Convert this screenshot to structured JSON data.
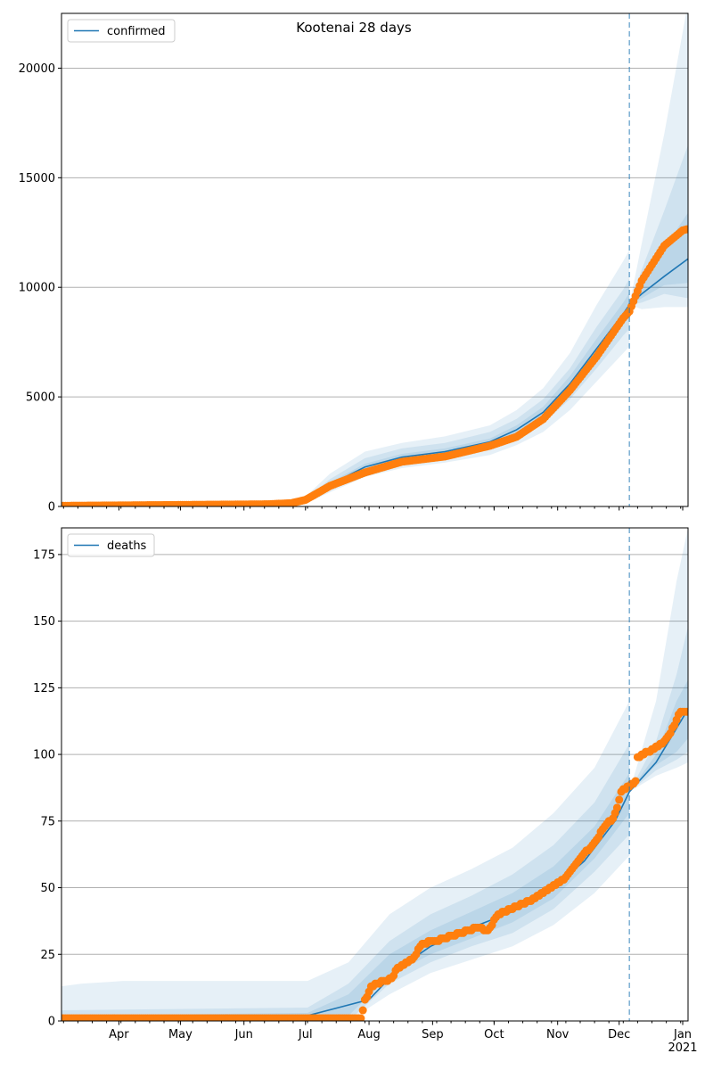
{
  "chart_data": [
    {
      "type": "line",
      "title": "Kootenai 28 days",
      "legend": {
        "label": "confirmed",
        "placement": "top-left"
      },
      "x_origin_date": "2020-03-04",
      "x_unit": "days since origin",
      "xlim": [
        0,
        305.6
      ],
      "ylim": [
        0,
        22500
      ],
      "yticks": [
        0,
        5000,
        10000,
        15000,
        20000
      ],
      "ytick_labels": [
        "0",
        "5000",
        "10000",
        "15000",
        "20000"
      ],
      "grid": "horizontal",
      "forecast_start_day": 277,
      "observed_keypoints": [
        [
          0,
          30
        ],
        [
          30,
          50
        ],
        [
          100,
          100
        ],
        [
          112,
          150
        ],
        [
          119,
          300
        ],
        [
          131,
          940
        ],
        [
          148,
          1550
        ],
        [
          166,
          2040
        ],
        [
          187,
          2280
        ],
        [
          209,
          2770
        ],
        [
          222,
          3180
        ],
        [
          235,
          3990
        ],
        [
          248,
          5300
        ],
        [
          261,
          6840
        ],
        [
          274,
          8600
        ],
        [
          277,
          8900
        ],
        [
          283,
          10300
        ],
        [
          294,
          11900
        ],
        [
          303,
          12600
        ],
        [
          305,
          12650
        ]
      ],
      "model": [
        [
          0,
          0
        ],
        [
          110,
          100
        ],
        [
          119,
          250
        ],
        [
          131,
          1000
        ],
        [
          148,
          1800
        ],
        [
          166,
          2250
        ],
        [
          187,
          2500
        ],
        [
          209,
          2950
        ],
        [
          222,
          3500
        ],
        [
          235,
          4300
        ],
        [
          248,
          5600
        ],
        [
          261,
          7200
        ],
        [
          274,
          8800
        ],
        [
          277,
          9200
        ],
        [
          283,
          9700
        ],
        [
          294,
          10500
        ],
        [
          305.6,
          11300
        ]
      ],
      "bands": [
        {
          "level": "outer",
          "hindcast": [
            [
              0,
              0,
              0
            ],
            [
              110,
              30,
              200
            ],
            [
              119,
              120,
              450
            ],
            [
              131,
              650,
              1500
            ],
            [
              148,
              1350,
              2500
            ],
            [
              166,
              1750,
              2900
            ],
            [
              187,
              2000,
              3200
            ],
            [
              209,
              2350,
              3700
            ],
            [
              222,
              2800,
              4400
            ],
            [
              235,
              3400,
              5400
            ],
            [
              248,
              4400,
              7000
            ],
            [
              261,
              5700,
              9200
            ],
            [
              274,
              7000,
              11200
            ],
            [
              277,
              7300,
              11700
            ]
          ],
          "forecast": [
            [
              277,
              9200,
              9200
            ],
            [
              283,
              9000,
              12000
            ],
            [
              294,
              9100,
              17000
            ],
            [
              305.6,
              9100,
              23000
            ]
          ]
        },
        {
          "level": "middle",
          "hindcast": [
            [
              0,
              0,
              0
            ],
            [
              110,
              50,
              150
            ],
            [
              119,
              160,
              350
            ],
            [
              131,
              780,
              1250
            ],
            [
              148,
              1500,
              2200
            ],
            [
              166,
              1950,
              2650
            ],
            [
              187,
              2200,
              2900
            ],
            [
              209,
              2600,
              3400
            ],
            [
              222,
              3100,
              4000
            ],
            [
              235,
              3800,
              4900
            ],
            [
              248,
              4900,
              6300
            ],
            [
              261,
              6300,
              8200
            ],
            [
              274,
              7800,
              9900
            ],
            [
              277,
              8100,
              10400
            ]
          ],
          "forecast": [
            [
              277,
              9200,
              9200
            ],
            [
              283,
              9300,
              10800
            ],
            [
              294,
              9700,
              13500
            ],
            [
              305.6,
              9500,
              16500
            ]
          ]
        },
        {
          "level": "inner",
          "hindcast": [
            [
              0,
              0,
              0
            ],
            [
              110,
              80,
              120
            ],
            [
              119,
              200,
              300
            ],
            [
              131,
              900,
              1100
            ],
            [
              148,
              1650,
              1950
            ],
            [
              166,
              2100,
              2400
            ],
            [
              187,
              2350,
              2650
            ],
            [
              209,
              2800,
              3100
            ],
            [
              222,
              3300,
              3700
            ],
            [
              235,
              4050,
              4550
            ],
            [
              248,
              5250,
              5950
            ],
            [
              261,
              6750,
              7650
            ],
            [
              274,
              8300,
              9300
            ],
            [
              277,
              8650,
              9750
            ]
          ],
          "forecast": [
            [
              277,
              9200,
              9200
            ],
            [
              283,
              9500,
              10100
            ],
            [
              294,
              10100,
              11800
            ],
            [
              305.6,
              10200,
              13400
            ]
          ]
        }
      ]
    },
    {
      "type": "line",
      "title": "",
      "legend": {
        "label": "deaths",
        "placement": "top-left"
      },
      "x_origin_date": "2020-03-04",
      "x_unit": "days since origin",
      "xlim": [
        0,
        305.6
      ],
      "ylim": [
        0,
        185
      ],
      "yticks": [
        0,
        25,
        50,
        75,
        100,
        125,
        150,
        175
      ],
      "ytick_labels": [
        "0",
        "25",
        "50",
        "75",
        "100",
        "125",
        "150",
        "175"
      ],
      "grid": "horizontal",
      "forecast_start_day": 277,
      "xticks": [
        {
          "day": 28,
          "label": "Apr"
        },
        {
          "day": 58,
          "label": "May"
        },
        {
          "day": 89,
          "label": "Jun"
        },
        {
          "day": 119,
          "label": "Jul"
        },
        {
          "day": 150,
          "label": "Aug"
        },
        {
          "day": 181,
          "label": "Sep"
        },
        {
          "day": 211,
          "label": "Oct"
        },
        {
          "day": 242,
          "label": "Nov"
        },
        {
          "day": 272,
          "label": "Dec"
        },
        {
          "day": 303,
          "label": "Jan",
          "sublabel": "2021"
        }
      ],
      "observed_keypoints": [
        [
          0,
          1
        ],
        [
          146,
          1
        ],
        [
          148,
          7.5
        ],
        [
          151,
          13
        ],
        [
          161,
          16
        ],
        [
          164,
          20
        ],
        [
          171,
          23
        ],
        [
          176,
          29
        ],
        [
          187,
          31
        ],
        [
          202,
          35
        ],
        [
          208,
          34
        ],
        [
          213,
          40
        ],
        [
          231,
          46
        ],
        [
          245,
          53
        ],
        [
          253,
          61
        ],
        [
          260,
          67
        ],
        [
          265,
          73
        ],
        [
          269,
          76
        ],
        [
          271,
          80
        ],
        [
          273,
          86
        ],
        [
          280,
          90
        ],
        [
          281,
          99
        ],
        [
          289,
          102
        ],
        [
          293,
          104
        ],
        [
          297,
          108
        ],
        [
          300,
          113
        ],
        [
          302,
          116
        ],
        [
          305,
          116
        ]
      ],
      "model": [
        [
          0,
          0
        ],
        [
          48,
          2
        ],
        [
          120,
          2
        ],
        [
          150,
          8
        ],
        [
          165,
          20
        ],
        [
          180,
          28
        ],
        [
          200,
          35
        ],
        [
          220,
          41
        ],
        [
          240,
          50
        ],
        [
          255,
          60
        ],
        [
          270,
          75
        ],
        [
          277,
          86
        ],
        [
          290,
          97
        ],
        [
          305.6,
          117
        ]
      ],
      "bands": [
        {
          "level": "outer",
          "hindcast": [
            [
              0,
              0,
              13
            ],
            [
              10,
              0,
              14
            ],
            [
              30,
              0,
              15
            ],
            [
              120,
              0,
              15
            ],
            [
              140,
              0,
              22
            ],
            [
              160,
              10,
              40
            ],
            [
              180,
              18,
              50
            ],
            [
              200,
              23,
              57
            ],
            [
              220,
              28,
              65
            ],
            [
              240,
              36,
              78
            ],
            [
              260,
              48,
              95
            ],
            [
              277,
              62,
              120
            ]
          ],
          "forecast": [
            [
              277,
              86,
              86
            ],
            [
              290,
              92,
              120
            ],
            [
              300,
              95,
              165
            ],
            [
              305.6,
              97,
              185
            ]
          ]
        },
        {
          "level": "middle",
          "hindcast": [
            [
              0,
              0,
              4
            ],
            [
              120,
              0,
              5
            ],
            [
              140,
              0,
              14
            ],
            [
              160,
              14,
              30
            ],
            [
              180,
              22,
              40
            ],
            [
              200,
              28,
              47
            ],
            [
              220,
              33,
              55
            ],
            [
              240,
              42,
              66
            ],
            [
              260,
              56,
              82
            ],
            [
              277,
              70,
              104
            ]
          ],
          "forecast": [
            [
              277,
              86,
              86
            ],
            [
              290,
              94,
              105
            ],
            [
              300,
              98,
              130
            ],
            [
              305.6,
              101,
              148
            ]
          ]
        },
        {
          "level": "inner",
          "hindcast": [
            [
              0,
              0,
              2
            ],
            [
              120,
              0,
              3
            ],
            [
              140,
              2,
              10
            ],
            [
              160,
              17,
              25
            ],
            [
              180,
              25,
              34
            ],
            [
              200,
              31,
              41
            ],
            [
              220,
              37,
              48
            ],
            [
              240,
              46,
              58
            ],
            [
              260,
              61,
              73
            ],
            [
              277,
              78,
              93
            ]
          ],
          "forecast": [
            [
              277,
              86,
              86
            ],
            [
              290,
              96,
              100
            ],
            [
              300,
              101,
              120
            ],
            [
              305.6,
              106,
              128
            ]
          ]
        }
      ]
    }
  ],
  "colors": {
    "model": "#1f77b4",
    "observed": "#ff7f0e",
    "grid": "#b0b0b0"
  }
}
